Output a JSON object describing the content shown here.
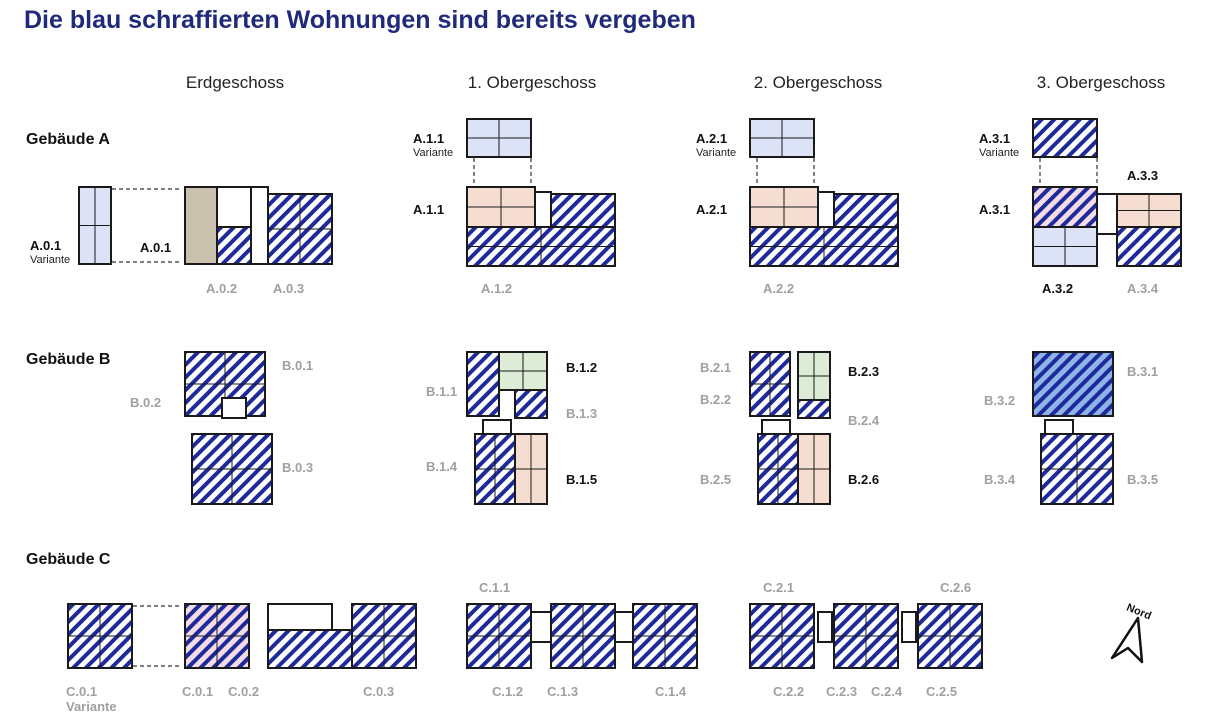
{
  "title": "Die blau schraffierten Wohnungen sind bereits vergeben",
  "columns": [
    "Erdgeschoss",
    "1. Obergeschoss",
    "2. Obergeschoss",
    "3. Obergeschoss"
  ],
  "buildings": [
    "Gebäude A",
    "Gebäude B",
    "Gebäude C"
  ],
  "variant_label": "Variante",
  "compass_label": "Nord",
  "colors": {
    "title": "#1f2a7a",
    "hatch_taken": "#1f2a9a",
    "free_beige": "#f5ddd2",
    "free_blue": "#dce3f6",
    "free_green": "#dcecd6",
    "gallery_grey": "#c9c1ae",
    "label_taken": "#a0a0a0",
    "label_free": "#111111"
  },
  "units": [
    {
      "id": "A.0.1",
      "variant": true,
      "status": "frei"
    },
    {
      "id": "A.0.1",
      "variant": false,
      "status": "frei"
    },
    {
      "id": "A.0.2",
      "status": "vergeben"
    },
    {
      "id": "A.0.3",
      "status": "vergeben"
    },
    {
      "id": "A.1.1",
      "variant": true,
      "status": "frei"
    },
    {
      "id": "A.1.1",
      "variant": false,
      "status": "frei"
    },
    {
      "id": "A.1.2",
      "status": "vergeben"
    },
    {
      "id": "A.2.1",
      "variant": true,
      "status": "frei"
    },
    {
      "id": "A.2.1",
      "variant": false,
      "status": "frei"
    },
    {
      "id": "A.2.2",
      "status": "vergeben"
    },
    {
      "id": "A.3.1",
      "variant": true,
      "status": "frei"
    },
    {
      "id": "A.3.1",
      "variant": false,
      "status": "frei"
    },
    {
      "id": "A.3.2",
      "status": "frei"
    },
    {
      "id": "A.3.3",
      "status": "frei"
    },
    {
      "id": "A.3.4",
      "status": "vergeben"
    },
    {
      "id": "B.0.1",
      "status": "vergeben"
    },
    {
      "id": "B.0.2",
      "status": "vergeben"
    },
    {
      "id": "B.0.3",
      "status": "vergeben"
    },
    {
      "id": "B.1.1",
      "status": "vergeben"
    },
    {
      "id": "B.1.2",
      "status": "frei"
    },
    {
      "id": "B.1.3",
      "status": "vergeben"
    },
    {
      "id": "B.1.4",
      "status": "vergeben"
    },
    {
      "id": "B.1.5",
      "status": "frei"
    },
    {
      "id": "B.2.1",
      "status": "vergeben"
    },
    {
      "id": "B.2.2",
      "status": "vergeben"
    },
    {
      "id": "B.2.3",
      "status": "frei"
    },
    {
      "id": "B.2.4",
      "status": "vergeben"
    },
    {
      "id": "B.2.5",
      "status": "vergeben"
    },
    {
      "id": "B.2.6",
      "status": "frei"
    },
    {
      "id": "B.3.1",
      "status": "vergeben"
    },
    {
      "id": "B.3.2",
      "status": "vergeben"
    },
    {
      "id": "B.3.4",
      "status": "vergeben"
    },
    {
      "id": "B.3.5",
      "status": "vergeben"
    },
    {
      "id": "C.0.1",
      "variant": true,
      "status": "vergeben"
    },
    {
      "id": "C.0.1",
      "variant": false,
      "status": "vergeben"
    },
    {
      "id": "C.0.2",
      "status": "vergeben"
    },
    {
      "id": "C.0.3",
      "status": "vergeben"
    },
    {
      "id": "C.1.1",
      "status": "vergeben"
    },
    {
      "id": "C.1.2",
      "status": "vergeben"
    },
    {
      "id": "C.1.3",
      "status": "vergeben"
    },
    {
      "id": "C.1.4",
      "status": "vergeben"
    },
    {
      "id": "C.2.1",
      "status": "vergeben"
    },
    {
      "id": "C.2.2",
      "status": "vergeben"
    },
    {
      "id": "C.2.3",
      "status": "vergeben"
    },
    {
      "id": "C.2.4",
      "status": "vergeben"
    },
    {
      "id": "C.2.5",
      "status": "vergeben"
    },
    {
      "id": "C.2.6",
      "status": "vergeben"
    }
  ]
}
